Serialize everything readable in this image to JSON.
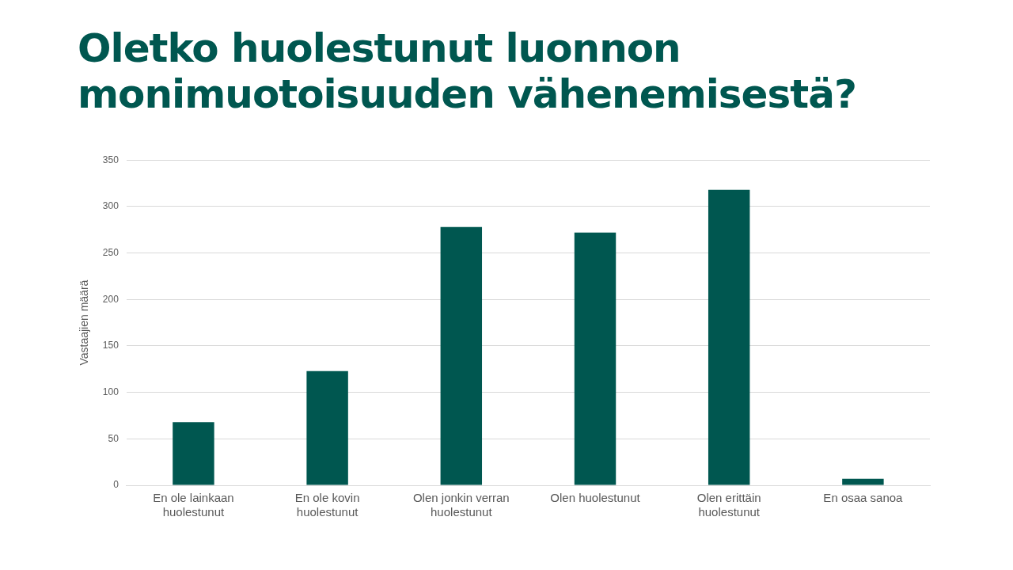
{
  "chart_data": {
    "type": "bar",
    "title": "Oletko huolestunut luonnon monimuotoisuuden vähenemisestä?",
    "ylabel": "Vastaajien määrä",
    "categories": [
      "En ole lainkaan huolestunut",
      "En ole kovin huolestunut",
      "Olen jonkin verran huolestunut",
      "Olen huolestunut",
      "Olen erittäin huolestunut",
      "En osaa sanoa"
    ],
    "values": [
      68,
      123,
      278,
      272,
      318,
      7
    ],
    "color": "#005750",
    "ylim": [
      0,
      350
    ],
    "yticks": [
      0,
      50,
      100,
      150,
      200,
      250,
      300,
      350
    ],
    "grid": "y",
    "legend": false
  }
}
